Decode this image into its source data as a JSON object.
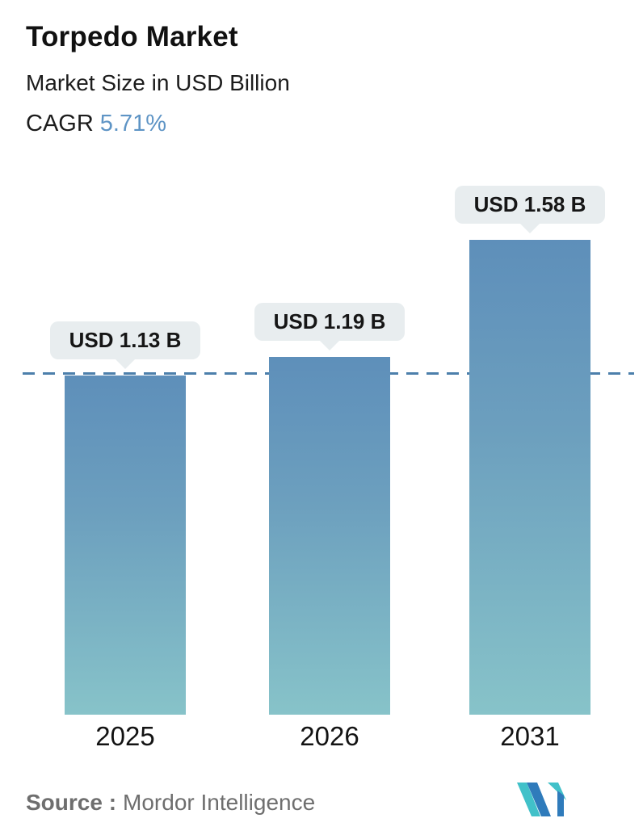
{
  "header": {
    "title": "Torpedo Market",
    "subtitle": "Market Size in USD Billion",
    "cagr_label": "CAGR",
    "cagr_value": "5.71%"
  },
  "chart_data": {
    "type": "bar",
    "title": "Torpedo Market",
    "ylabel": "Market Size in USD Billion",
    "categories": [
      "2025",
      "2026",
      "2031"
    ],
    "values": [
      1.13,
      1.19,
      1.58
    ],
    "bar_labels": [
      "USD 1.13 B",
      "USD 1.19 B",
      "USD 1.58 B"
    ],
    "cagr_percent": 5.71,
    "ylim": [
      0,
      1.7
    ],
    "grid": "off",
    "legend": "none",
    "reference_line": {
      "style": "dashed",
      "value": 1.13,
      "color": "#4c7fab"
    },
    "colors": {
      "bar_gradient_top": "#5e8fba",
      "bar_gradient_bottom": "#87c3c9",
      "bubble_background": "#e8edef",
      "accent_blue": "#5e94c5"
    }
  },
  "footer": {
    "source_label": "Source :",
    "source_value": "Mordor Intelligence",
    "logo": "mordor-intelligence-logo",
    "logo_colors": {
      "blue": "#2f7bbb",
      "teal": "#41c1c9"
    }
  }
}
